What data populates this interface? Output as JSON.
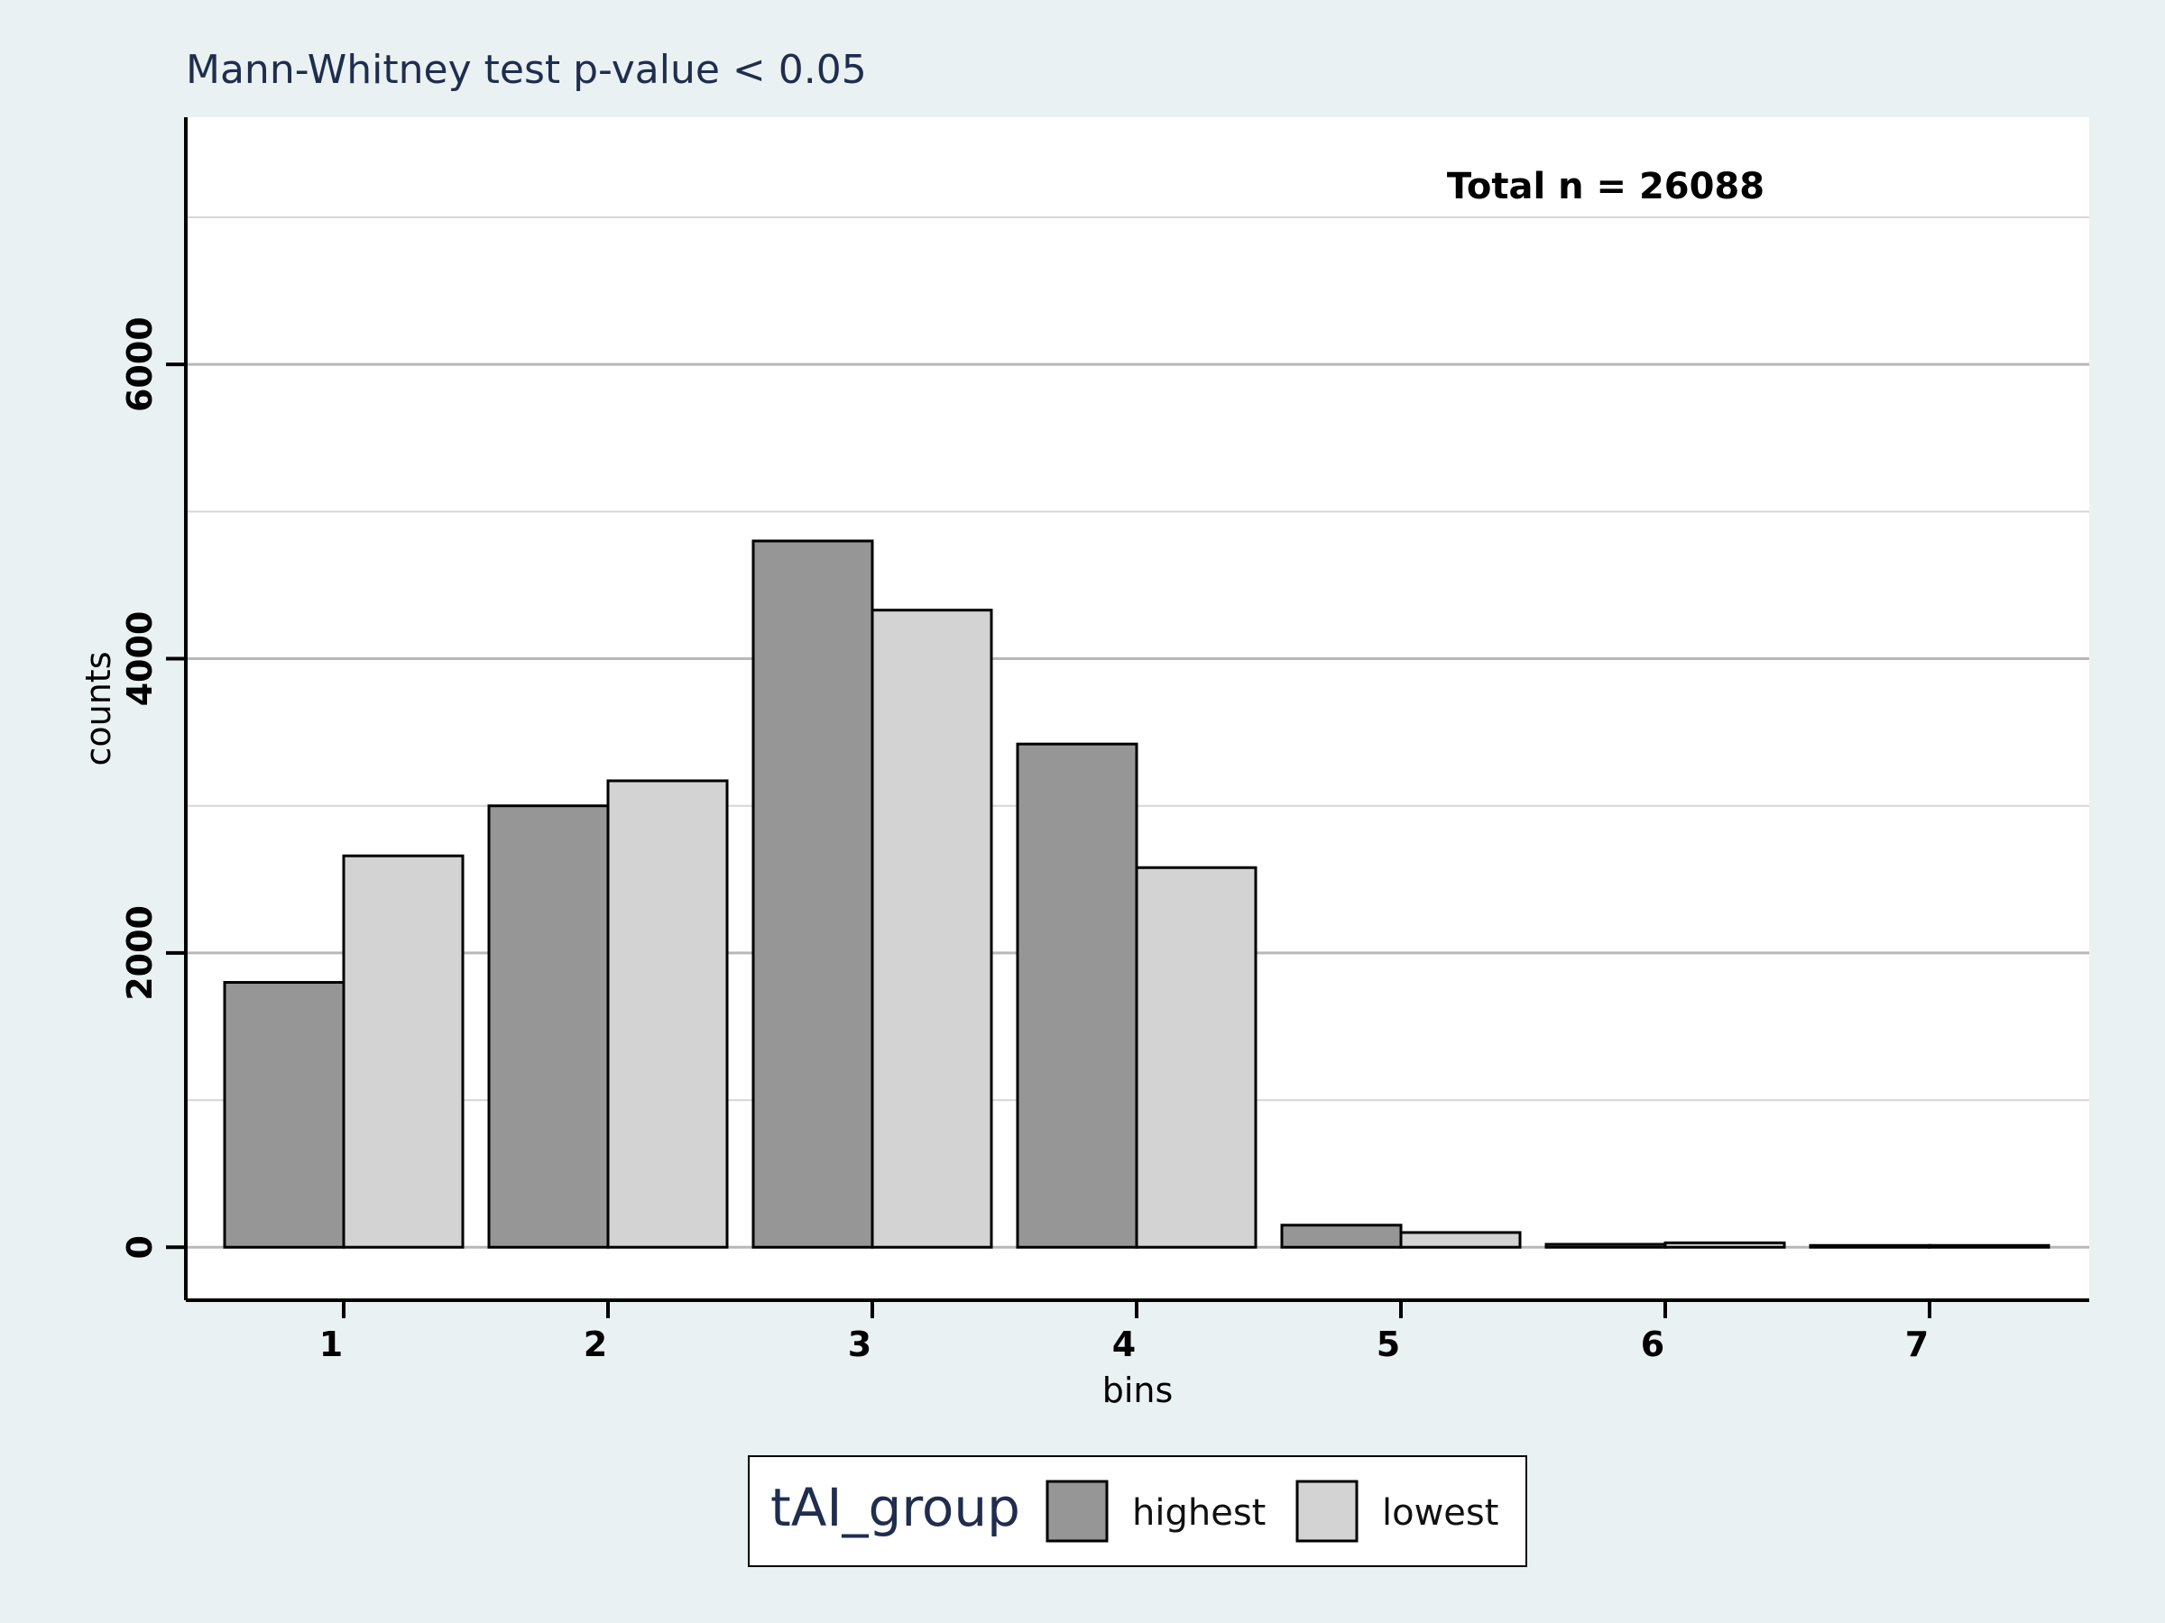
{
  "chart_data": {
    "type": "bar",
    "title": "Mann-Whitney test  p-value < 0.05",
    "annotation": "Total n = 26088",
    "xlabel": "bins",
    "ylabel": "counts",
    "categories": [
      "1",
      "2",
      "3",
      "4",
      "5",
      "6",
      "7"
    ],
    "yticks": [
      0,
      2000,
      4000,
      6000
    ],
    "ylim": [
      -360,
      7680
    ],
    "grid": true,
    "legend": {
      "title": "tAI_group",
      "position": "bottom-center"
    },
    "series": [
      {
        "name": "highest",
        "color": "#969696",
        "values": [
          1800,
          3000,
          4800,
          3420,
          150,
          20,
          4
        ]
      },
      {
        "name": "lowest",
        "color": "#d3d3d3",
        "values": [
          2660,
          3170,
          4330,
          2580,
          100,
          30,
          4
        ]
      }
    ]
  }
}
